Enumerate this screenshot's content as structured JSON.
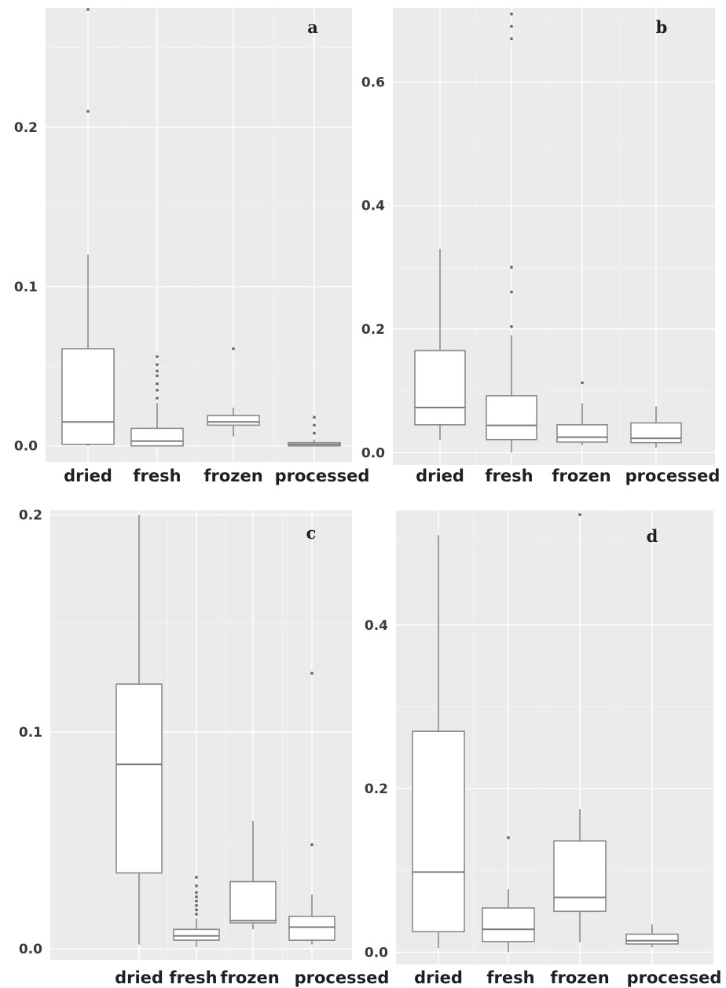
{
  "chart_data": [
    {
      "type": "box",
      "tag": "a",
      "categories": [
        "dried",
        "fresh",
        "frozen",
        "processed"
      ],
      "ylim": [
        -0.01,
        0.275
      ],
      "yticks": [
        0.0,
        0.1,
        0.2
      ],
      "ytick_labels": [
        "0.0",
        "0.1",
        "0.2"
      ],
      "grid": true,
      "boxes": [
        {
          "category": "dried",
          "whislo": 0.0,
          "q1": 0.001,
          "med": 0.015,
          "q3": 0.061,
          "whishi": 0.12,
          "outliers": [
            0.21,
            0.274
          ]
        },
        {
          "category": "fresh",
          "whislo": 0.0,
          "q1": 0.0,
          "med": 0.003,
          "q3": 0.011,
          "whishi": 0.027,
          "outliers": [
            0.03,
            0.035,
            0.039,
            0.044,
            0.047,
            0.051,
            0.056
          ]
        },
        {
          "category": "frozen",
          "whislo": 0.006,
          "q1": 0.013,
          "med": 0.015,
          "q3": 0.019,
          "whishi": 0.024,
          "outliers": [
            0.061
          ]
        },
        {
          "category": "processed",
          "whislo": 0.0,
          "q1": 0.0,
          "med": 0.001,
          "q3": 0.002,
          "whishi": 0.004,
          "outliers": [
            0.008,
            0.013,
            0.018
          ]
        }
      ]
    },
    {
      "type": "box",
      "tag": "b",
      "categories": [
        "dried",
        "fresh",
        "frozen",
        "processed"
      ],
      "ylim": [
        -0.02,
        0.72
      ],
      "yticks": [
        0.0,
        0.2,
        0.4,
        0.6
      ],
      "ytick_labels": [
        "0.0",
        "0.2",
        "0.4",
        "0.6"
      ],
      "grid": true,
      "boxes": [
        {
          "category": "dried",
          "whislo": 0.02,
          "q1": 0.045,
          "med": 0.073,
          "q3": 0.165,
          "whishi": 0.33,
          "outliers": []
        },
        {
          "category": "fresh",
          "whislo": 0.0,
          "q1": 0.021,
          "med": 0.044,
          "q3": 0.092,
          "whishi": 0.19,
          "outliers": [
            0.204,
            0.26,
            0.3,
            0.67,
            0.69,
            0.71
          ]
        },
        {
          "category": "frozen",
          "whislo": 0.012,
          "q1": 0.017,
          "med": 0.025,
          "q3": 0.045,
          "whishi": 0.08,
          "outliers": [
            0.113
          ]
        },
        {
          "category": "processed",
          "whislo": 0.008,
          "q1": 0.016,
          "med": 0.023,
          "q3": 0.048,
          "whishi": 0.075,
          "outliers": []
        }
      ]
    },
    {
      "type": "box",
      "tag": "c",
      "categories": [
        "dried",
        "fresh",
        "frozen",
        "processed"
      ],
      "ylim": [
        -0.005,
        0.202
      ],
      "yticks": [
        0.0,
        0.1,
        0.2
      ],
      "ytick_labels": [
        "0.0",
        "0.1",
        "0.2"
      ],
      "grid": true,
      "boxes": [
        {
          "category": "dried",
          "whislo": 0.002,
          "q1": 0.035,
          "med": 0.085,
          "q3": 0.122,
          "whishi": 0.2,
          "outliers": []
        },
        {
          "category": "fresh",
          "whislo": 0.001,
          "q1": 0.004,
          "med": 0.006,
          "q3": 0.009,
          "whishi": 0.014,
          "outliers": [
            0.016,
            0.018,
            0.02,
            0.022,
            0.024,
            0.026,
            0.029,
            0.033
          ]
        },
        {
          "category": "frozen",
          "whislo": 0.009,
          "q1": 0.012,
          "med": 0.013,
          "q3": 0.031,
          "whishi": 0.059,
          "outliers": []
        },
        {
          "category": "processed",
          "whislo": 0.002,
          "q1": 0.004,
          "med": 0.01,
          "q3": 0.015,
          "whishi": 0.025,
          "outliers": [
            0.048,
            0.127
          ]
        }
      ]
    },
    {
      "type": "box",
      "tag": "d",
      "categories": [
        "dried",
        "fresh",
        "frozen",
        "processed"
      ],
      "ylim": [
        -0.015,
        0.54
      ],
      "yticks": [
        0.0,
        0.2,
        0.4
      ],
      "ytick_labels": [
        "0.0",
        "0.2",
        "0.4"
      ],
      "grid": true,
      "boxes": [
        {
          "category": "dried",
          "whislo": 0.005,
          "q1": 0.025,
          "med": 0.098,
          "q3": 0.27,
          "whishi": 0.51,
          "outliers": []
        },
        {
          "category": "fresh",
          "whislo": 0.0,
          "q1": 0.013,
          "med": 0.028,
          "q3": 0.054,
          "whishi": 0.077,
          "outliers": [
            0.14
          ]
        },
        {
          "category": "frozen",
          "whislo": 0.012,
          "q1": 0.05,
          "med": 0.067,
          "q3": 0.136,
          "whishi": 0.175,
          "outliers": [
            0.535
          ]
        },
        {
          "category": "processed",
          "whislo": 0.006,
          "q1": 0.01,
          "med": 0.014,
          "q3": 0.022,
          "whishi": 0.034,
          "outliers": []
        }
      ]
    }
  ]
}
